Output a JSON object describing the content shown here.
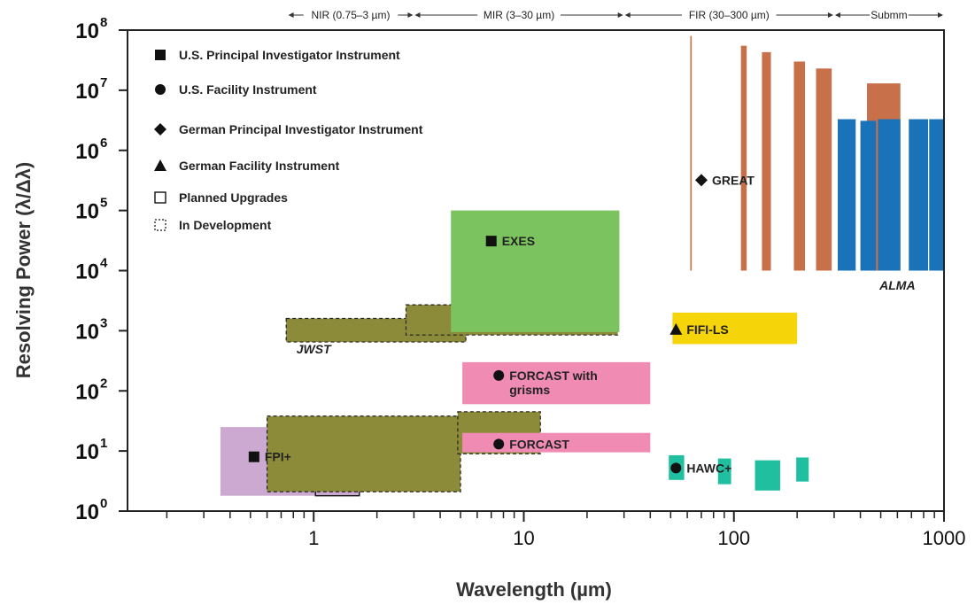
{
  "chart_data": {
    "type": "area",
    "xlabel": "Wavelength (µm)",
    "ylabel": "Resolving Power (λ/Δλ)",
    "x_scale": "log",
    "y_scale": "log",
    "xlim": [
      0.13,
      1000
    ],
    "ylim": [
      1,
      100000000
    ],
    "x_tick_labels": [
      {
        "value": 1,
        "label": "1"
      },
      {
        "value": 10,
        "label": "10"
      },
      {
        "value": 100,
        "label": "100"
      },
      {
        "value": 1000,
        "label": "1000"
      }
    ],
    "y_tick_labels": [
      {
        "value": 1,
        "base": "10",
        "exp": "0"
      },
      {
        "value": 10,
        "base": "10",
        "exp": "1"
      },
      {
        "value": 100,
        "base": "10",
        "exp": "2"
      },
      {
        "value": 1000,
        "base": "10",
        "exp": "3"
      },
      {
        "value": 10000,
        "base": "10",
        "exp": "4"
      },
      {
        "value": 100000,
        "base": "10",
        "exp": "5"
      },
      {
        "value": 1000000,
        "base": "10",
        "exp": "6"
      },
      {
        "value": 10000000,
        "base": "10",
        "exp": "7"
      },
      {
        "value": 100000000,
        "base": "10",
        "exp": "8"
      }
    ],
    "bands": [
      {
        "label": "NIR (0.75–3 µm)",
        "from": 0.75,
        "to": 3
      },
      {
        "label": "MIR (3–30 µm)",
        "from": 3,
        "to": 30
      },
      {
        "label": "FIR (30–300 µm)",
        "from": 30,
        "to": 300
      },
      {
        "label": "Submm",
        "from": 300,
        "to": 1000
      }
    ],
    "legend": [
      {
        "marker": "square",
        "label": "U.S. Principal Investigator Instrument"
      },
      {
        "marker": "circle",
        "label": "U.S. Facility Instrument"
      },
      {
        "marker": "diamond",
        "label": "German Principal Investigator Instrument"
      },
      {
        "marker": "triangle",
        "label": "German Facility Instrument"
      },
      {
        "marker": "open-square",
        "label": "Planned Upgrades"
      },
      {
        "marker": "dashed-square",
        "label": "In Development"
      }
    ],
    "colors": {
      "jwst": "#8b8b3a",
      "exes": "#7ac35f",
      "fifi": "#f5d50a",
      "forcast": "#f08cb4",
      "hawc": "#1fbfa0",
      "great": "#c8704a",
      "alma": "#1a73b8",
      "fpi": "#c39ac8"
    },
    "instruments": [
      {
        "name": "FPI+",
        "marker": "square",
        "label_at": {
          "x": 0.52,
          "y": 8
        },
        "color": "fpi",
        "regions": [
          {
            "x": [
              0.36,
              1.65
            ],
            "y": [
              1.8,
              25
            ],
            "style": "solid"
          }
        ]
      },
      {
        "name": "FPI+ planned upgrade",
        "color": "fpi",
        "regions": [
          {
            "x": [
              1.02,
              1.65
            ],
            "y": [
              1.8,
              25
            ],
            "style": "open"
          }
        ]
      },
      {
        "name": "JWST",
        "label": "JWST",
        "label_at": {
          "x": 1.0,
          "y": 420
        },
        "color": "jwst",
        "regions": [
          {
            "x": [
              0.6,
              5.0
            ],
            "y": [
              2.1,
              38
            ],
            "style": "dashed"
          },
          {
            "x": [
              0.74,
              5.3
            ],
            "y": [
              650,
              1600
            ],
            "style": "dashed"
          },
          {
            "x": [
              2.75,
              28
            ],
            "y": [
              850,
              2700
            ],
            "style": "dashed"
          },
          {
            "x": [
              4.85,
              12
            ],
            "y": [
              9,
              45
            ],
            "style": "dashed"
          }
        ]
      },
      {
        "name": "EXES",
        "marker": "square",
        "label_at": {
          "x": 7.0,
          "y": 31000
        },
        "color": "exes",
        "regions": [
          {
            "x": [
              4.5,
              28.5
            ],
            "y": [
              950,
              100000
            ],
            "style": "solid"
          }
        ]
      },
      {
        "name": "FORCAST with grisms",
        "label_lines": [
          "FORCAST with",
          "grisms"
        ],
        "marker": "circle",
        "label_at": {
          "x": 7.6,
          "y": 180
        },
        "color": "forcast",
        "regions": [
          {
            "x": [
              5.1,
              40
            ],
            "y": [
              60,
              300
            ],
            "style": "solid"
          }
        ]
      },
      {
        "name": "FORCAST",
        "marker": "circle",
        "label_at": {
          "x": 7.6,
          "y": 13
        },
        "color": "forcast",
        "regions": [
          {
            "x": [
              5.1,
              40
            ],
            "y": [
              9.5,
              20
            ],
            "style": "solid"
          }
        ]
      },
      {
        "name": "FIFI-LS",
        "marker": "triangle",
        "label_at": {
          "x": 53,
          "y": 1050
        },
        "color": "fifi",
        "regions": [
          {
            "x": [
              51,
              200
            ],
            "y": [
              600,
              2000
            ],
            "style": "solid"
          }
        ]
      },
      {
        "name": "HAWC+",
        "marker": "circle",
        "label_at": {
          "x": 53,
          "y": 5.2
        },
        "color": "hawc",
        "regions": [
          {
            "x": [
              49,
              58
            ],
            "y": [
              3.3,
              8.5
            ],
            "style": "solid"
          },
          {
            "x": [
              84,
              97
            ],
            "y": [
              2.8,
              7.5
            ],
            "style": "solid"
          },
          {
            "x": [
              126,
              166
            ],
            "y": [
              2.2,
              7.0
            ],
            "style": "solid"
          },
          {
            "x": [
              198,
              227
            ],
            "y": [
              3.1,
              7.8
            ],
            "style": "solid"
          }
        ]
      },
      {
        "name": "GREAT",
        "marker": "diamond",
        "label_at": {
          "x": 70,
          "y": 320000
        },
        "color": "great",
        "regions": [
          {
            "x": [
              62,
              63
            ],
            "y": [
              10000,
              80000000
            ],
            "style": "solid"
          },
          {
            "x": [
              108,
              115
            ],
            "y": [
              10000,
              55000000
            ],
            "style": "solid"
          },
          {
            "x": [
              136,
              150
            ],
            "y": [
              10000,
              43000000
            ],
            "style": "solid"
          },
          {
            "x": [
              193,
              218
            ],
            "y": [
              10000,
              30000000
            ],
            "style": "solid"
          },
          {
            "x": [
              246,
              292
            ],
            "y": [
              10000,
              23000000
            ],
            "style": "solid"
          },
          {
            "x": [
              430,
              620
            ],
            "y": [
              10000,
              13000000
            ],
            "style": "solid"
          }
        ]
      },
      {
        "name": "ALMA",
        "label": "ALMA",
        "label_at": {
          "x": 600,
          "y": 4800
        },
        "color": "alma",
        "regions": [
          {
            "x": [
              312,
              380
            ],
            "y": [
              10000,
              3300000
            ],
            "style": "solid"
          },
          {
            "x": [
              400,
              475
            ],
            "y": [
              10000,
              3100000
            ],
            "style": "solid"
          },
          {
            "x": [
              485,
              620
            ],
            "y": [
              10000,
              3300000
            ],
            "style": "solid"
          },
          {
            "x": [
              680,
              840
            ],
            "y": [
              10000,
              3300000
            ],
            "style": "solid"
          },
          {
            "x": [
              850,
              1000
            ],
            "y": [
              10000,
              3300000
            ],
            "style": "solid"
          }
        ]
      }
    ]
  }
}
